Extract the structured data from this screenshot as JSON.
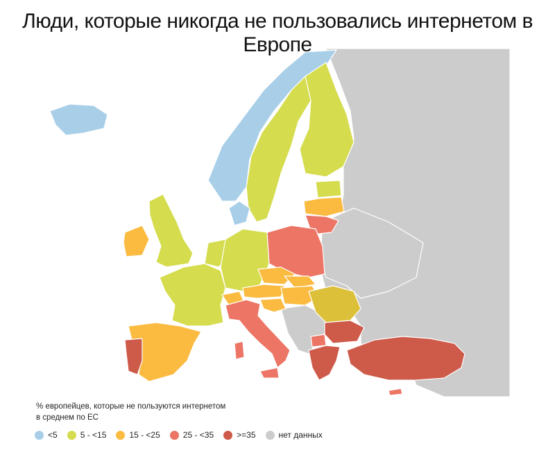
{
  "title": "Люди, которые никогда не пользовались интернетом в Европе",
  "legend": {
    "caption_line1": "% европейцев, которые не пользуются интернетом",
    "caption_line2": "в среднем по ЕС",
    "items": [
      {
        "label": "<5",
        "color": "#a9cfe8"
      },
      {
        "label": "5 - <15",
        "color": "#d5dc4d"
      },
      {
        "label": "15 - <25",
        "color": "#fbbb41"
      },
      {
        "label": "25 - <35",
        "color": "#ec7565"
      },
      {
        "label": ">=35",
        "color": "#ce5a4a"
      },
      {
        "label": "нет данных",
        "color": "#cccccc"
      }
    ]
  }
}
